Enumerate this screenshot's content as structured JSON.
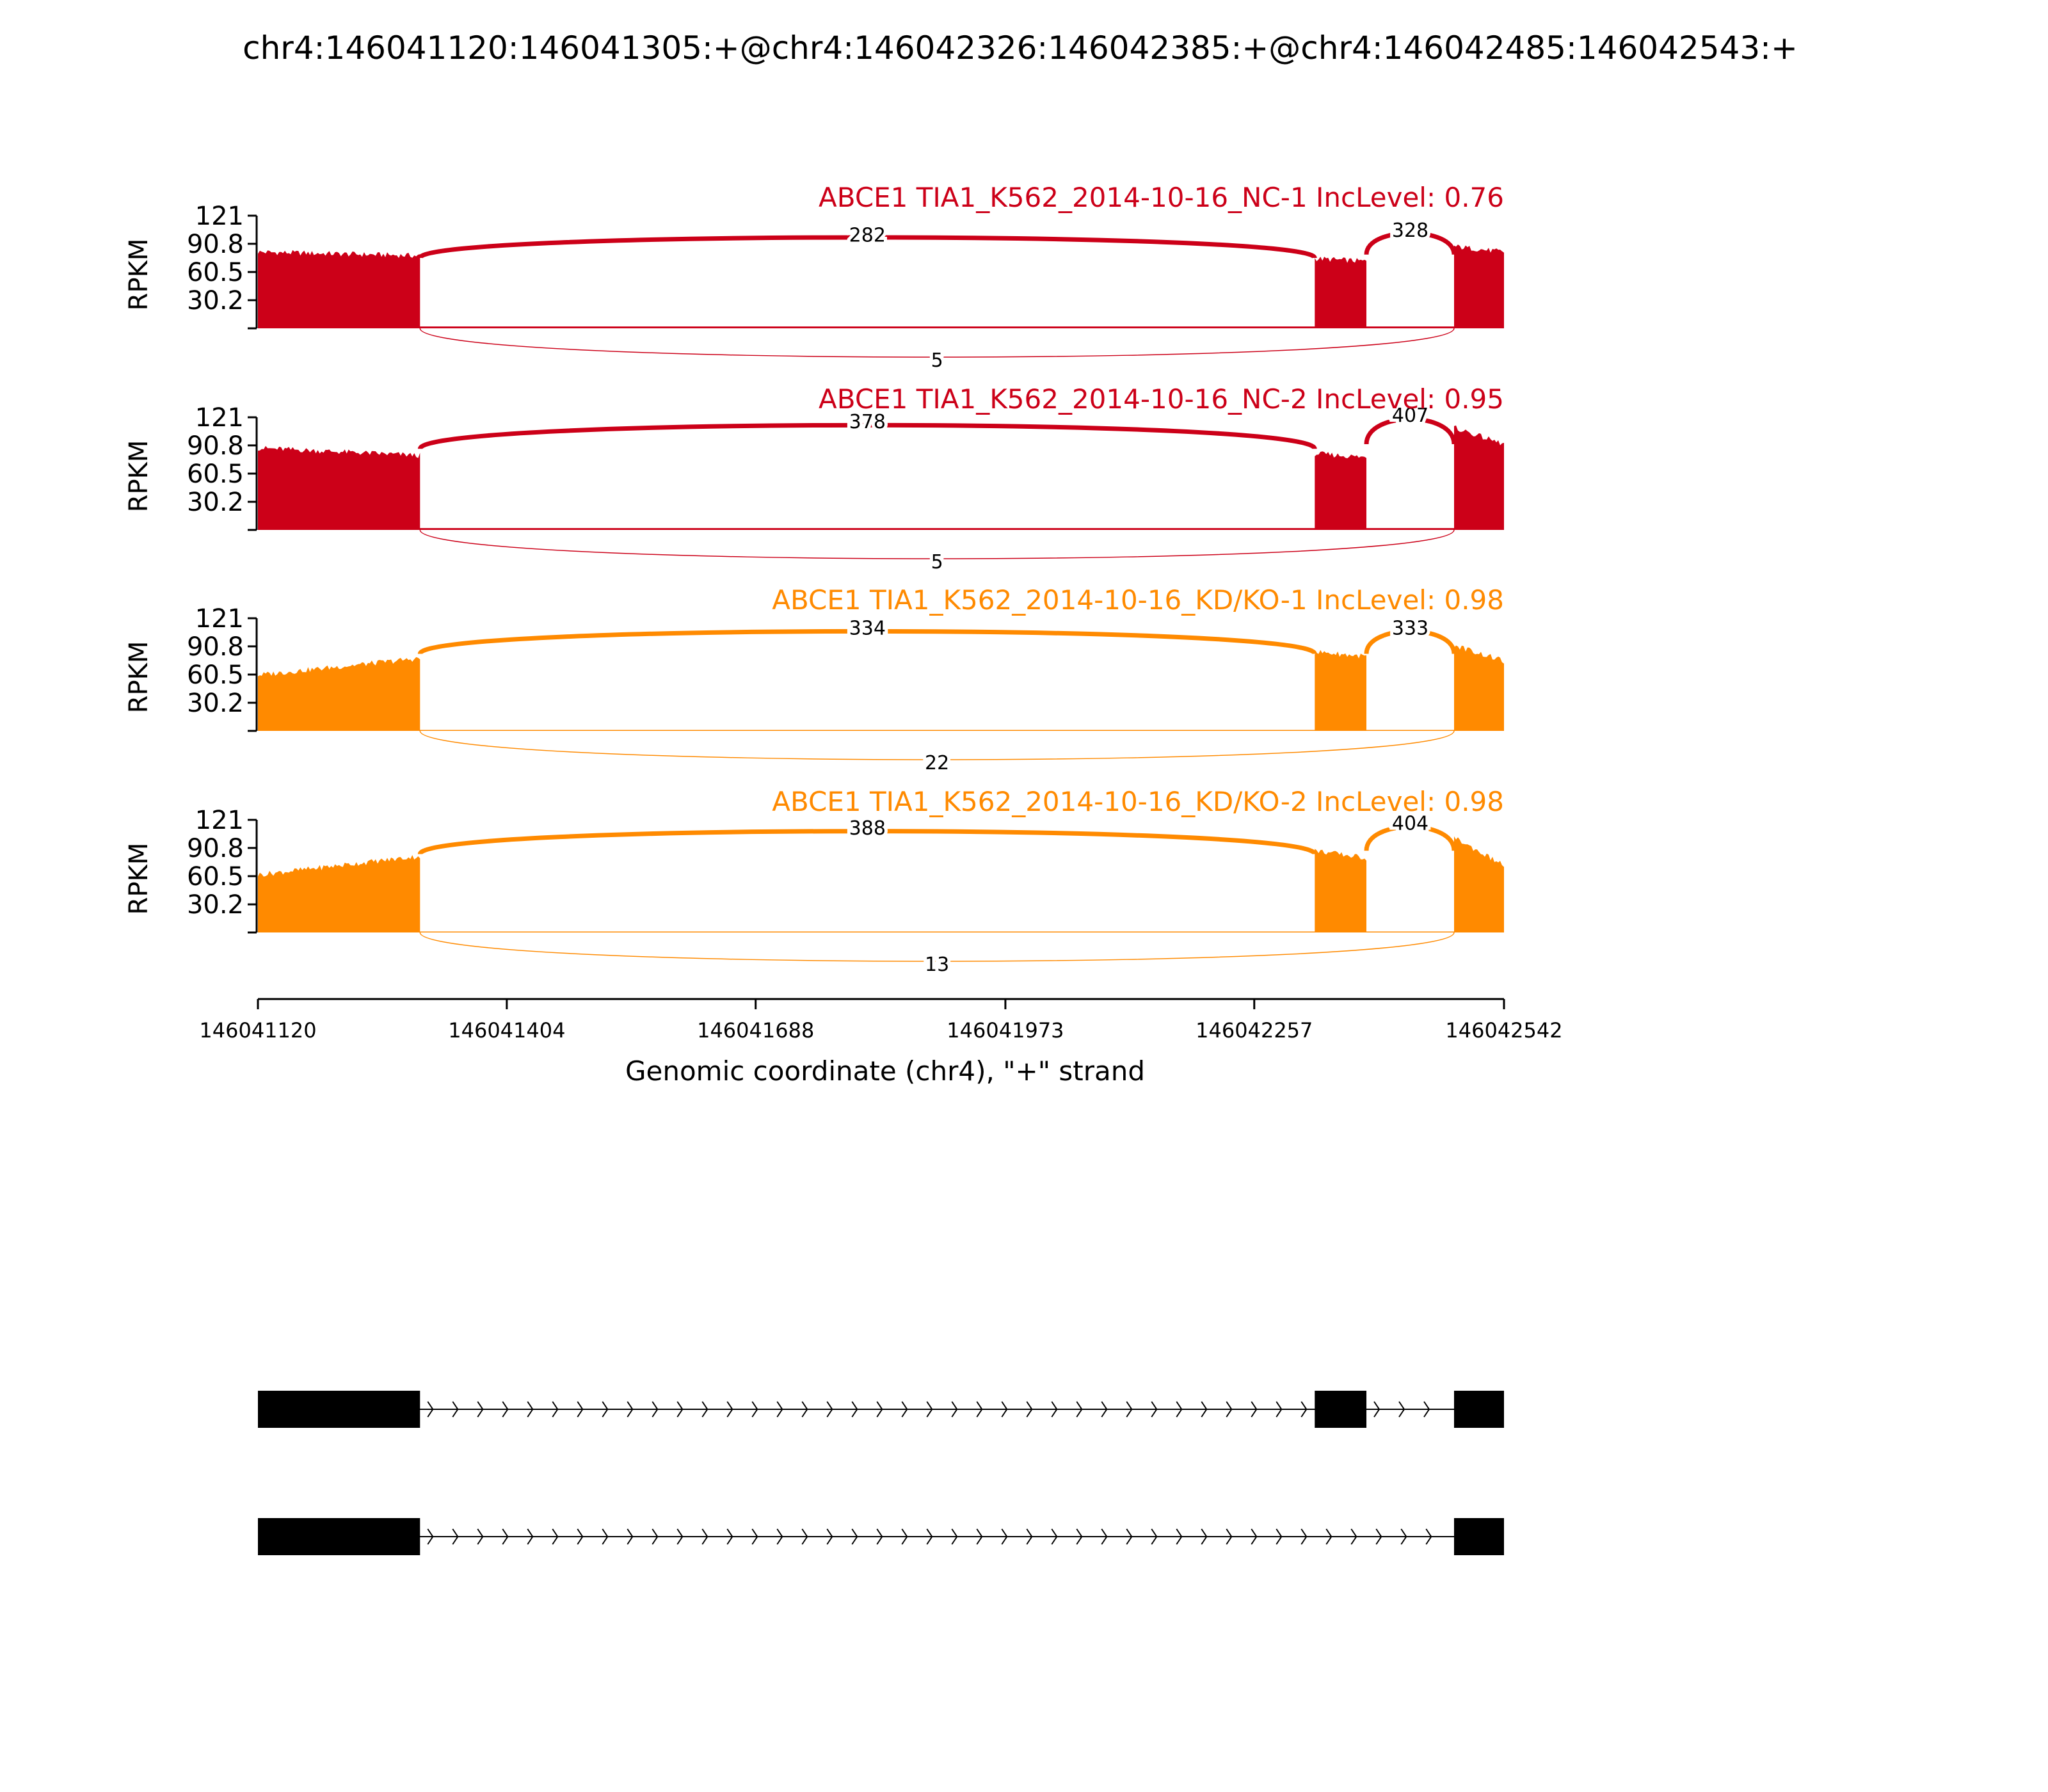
{
  "title": "chr4:146041120:146041305:+@chr4:146042326:146042385:+@chr4:146042485:146042543:+",
  "colors": {
    "nc": "#cc0018",
    "kd": "#ff8a00",
    "text": "#000000",
    "gene": "#000000"
  },
  "chart_data": {
    "type": "area",
    "title": "chr4:146041120:146041305:+@chr4:146042326:146042385:+@chr4:146042485:146042543:+",
    "xlabel": "Genomic coordinate (chr4), \"+\" strand",
    "ylabel": "RPKM",
    "xlim": [
      146041120,
      146042542
    ],
    "x_ticks": [
      "146041120",
      "146041404",
      "146041688",
      "146041973",
      "146042257",
      "146042542"
    ],
    "x_tick_values": [
      146041120,
      146041404,
      146041688,
      146041973,
      146042257,
      146042542
    ],
    "ylim": [
      0,
      121
    ],
    "y_ticks": [
      "121",
      "90.8",
      "60.5",
      "30.2"
    ],
    "y_tick_values": [
      121,
      90.8,
      60.5,
      30.2
    ],
    "exons": [
      {
        "start": 146041120,
        "end": 146041305
      },
      {
        "start": 146042326,
        "end": 146042385
      },
      {
        "start": 146042485,
        "end": 146042543
      }
    ],
    "series": [
      {
        "name": "ABCE1 TIA1_K562_2014-10-16_NC-1 IncLevel: 0.76",
        "color_key": "nc",
        "exon_coverage": [
          [
            82,
            78
          ],
          [
            75,
            72
          ],
          [
            88,
            82
          ]
        ],
        "intron_coverage": 2,
        "junctions": [
          {
            "label": "282",
            "from": 146041305,
            "to": 146042326,
            "side": "top",
            "height": 105
          },
          {
            "label": "328",
            "from": 146042385,
            "to": 146042485,
            "side": "top",
            "height": 110
          },
          {
            "label": "5",
            "from": 146041305,
            "to": 146042485,
            "side": "bottom",
            "height": 30
          }
        ]
      },
      {
        "name": "ABCE1 TIA1_K562_2014-10-16_NC-2 IncLevel: 0.95",
        "color_key": "nc",
        "exon_coverage": [
          [
            88,
            80
          ],
          [
            82,
            78
          ],
          [
            110,
            92
          ]
        ],
        "intron_coverage": 2,
        "junctions": [
          {
            "label": "378",
            "from": 146041305,
            "to": 146042326,
            "side": "top",
            "height": 121
          },
          {
            "label": "407",
            "from": 146042385,
            "to": 146042485,
            "side": "top",
            "height": 128
          },
          {
            "label": "5",
            "from": 146041305,
            "to": 146042485,
            "side": "bottom",
            "height": 30
          }
        ]
      },
      {
        "name": "ABCE1 TIA1_K562_2014-10-16_KD/KO-1 IncLevel: 0.98",
        "color_key": "kd",
        "exon_coverage": [
          [
            60,
            78
          ],
          [
            85,
            80
          ],
          [
            92,
            75
          ]
        ],
        "intron_coverage": 1,
        "junctions": [
          {
            "label": "334",
            "from": 146041305,
            "to": 146042326,
            "side": "top",
            "height": 115
          },
          {
            "label": "333",
            "from": 146042385,
            "to": 146042485,
            "side": "top",
            "height": 115
          },
          {
            "label": "22",
            "from": 146041305,
            "to": 146042485,
            "side": "bottom",
            "height": 30
          }
        ]
      },
      {
        "name": "ABCE1 TIA1_K562_2014-10-16_KD/KO-2 IncLevel: 0.98",
        "color_key": "kd",
        "exon_coverage": [
          [
            62,
            82
          ],
          [
            88,
            80
          ],
          [
            102,
            72
          ]
        ],
        "intron_coverage": 1,
        "junctions": [
          {
            "label": "388",
            "from": 146041305,
            "to": 146042326,
            "side": "top",
            "height": 117
          },
          {
            "label": "404",
            "from": 146042385,
            "to": 146042485,
            "side": "top",
            "height": 122
          },
          {
            "label": "13",
            "from": 146041305,
            "to": 146042485,
            "side": "bottom",
            "height": 30
          }
        ]
      }
    ],
    "gene_models": [
      {
        "exons": [
          [
            146041120,
            146041305
          ],
          [
            146042326,
            146042385
          ],
          [
            146042485,
            146042543
          ]
        ]
      },
      {
        "exons": [
          [
            146041120,
            146041305
          ],
          [
            146042485,
            146042543
          ]
        ]
      }
    ]
  }
}
